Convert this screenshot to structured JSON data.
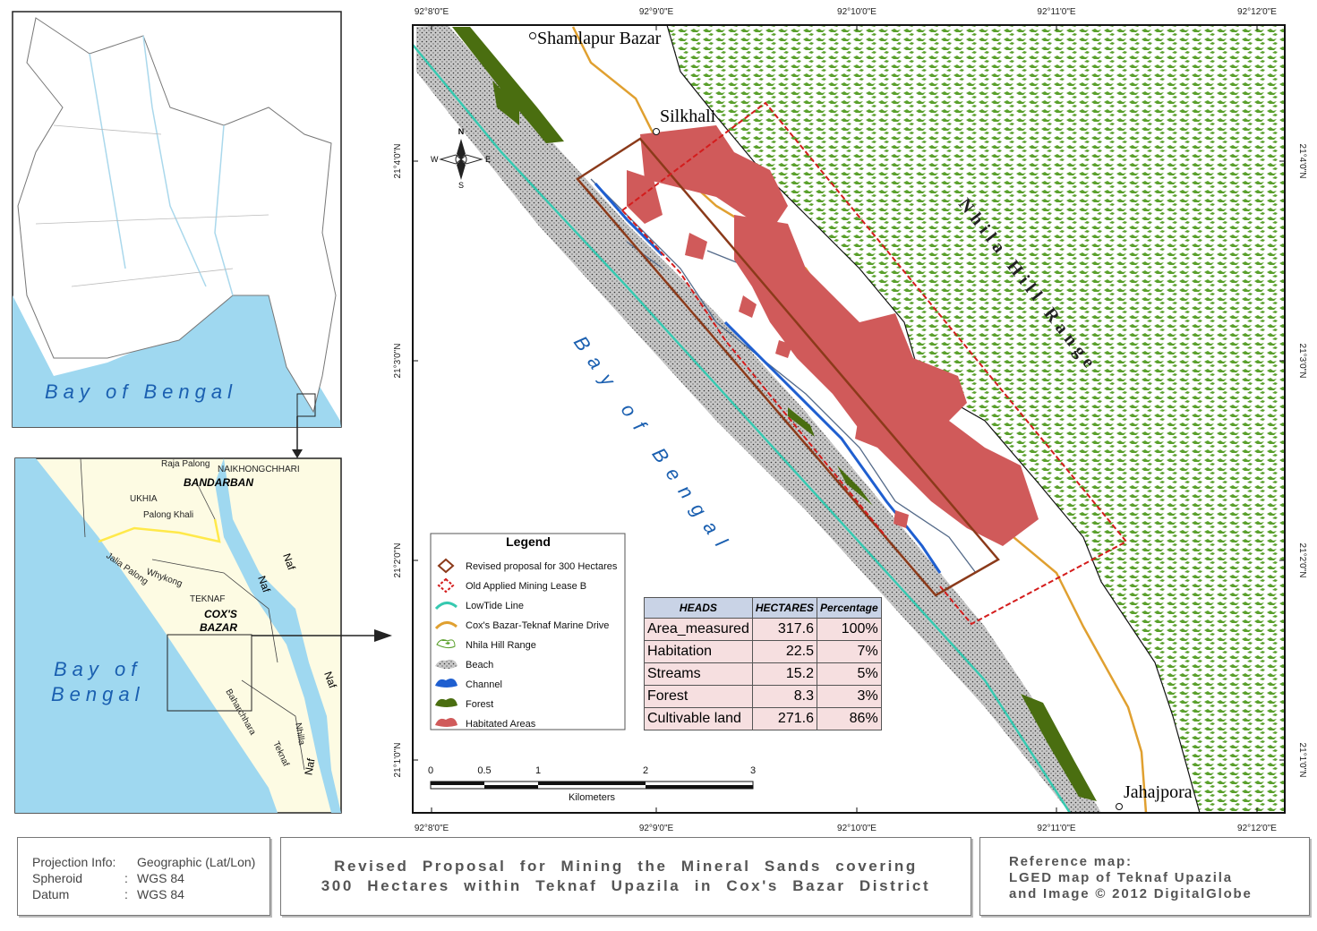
{
  "locator_map": {
    "sea_label": "Bay of Bengal"
  },
  "district_map": {
    "labels": [
      "Raja Palong",
      "NAIKHONGCHHARI",
      "BANDARBAN",
      "UKHIA",
      "Palong Khali",
      "Jalia Palong",
      "Whykong",
      "TEKNAF",
      "Baharchhara",
      "Nhilla",
      "Teknaf"
    ],
    "district_label": [
      "COX'S",
      "BAZAR"
    ],
    "sea_label": [
      "Bay of",
      "Bengal"
    ],
    "river_labels": [
      "Naf",
      "Naf",
      "Naf",
      "Naf"
    ]
  },
  "main_map": {
    "places": [
      "Shamlapur Bazar",
      "Silkhali",
      "Jahajpora"
    ],
    "hill_label": "Nhila Hill Range",
    "sea_label": "Bay of Bengal",
    "compass": {
      "n": "N",
      "s": "S",
      "e": "E",
      "w": "W"
    },
    "longitudes": [
      "92°8'0\"E",
      "92°9'0\"E",
      "92°10'0\"E",
      "92°11'0\"E",
      "92°12'0\"E"
    ],
    "latitudes": [
      "21°4'0\"N",
      "21°3'0\"N",
      "21°2'0\"N",
      "21°1'0\"N"
    ]
  },
  "legend": {
    "title": "Legend",
    "items": [
      "Revised proposal for 300 Hectares",
      "Old Applied Mining Lease B",
      "LowTide Line",
      "Cox's Bazar-Teknaf Marine Drive",
      "Nhila Hill Range",
      "Beach",
      "Channel",
      "Forest",
      "Habitated Areas"
    ]
  },
  "scale_bar": {
    "ticks": [
      0,
      0.5,
      1,
      2,
      3
    ],
    "unit": "Kilometers"
  },
  "table": {
    "header": [
      "HEADS",
      "HECTARES",
      "Percentage"
    ],
    "rows": [
      [
        "Area_measured",
        317.6,
        "100%"
      ],
      [
        "Habitation",
        22.5,
        "7%"
      ],
      [
        "Streams",
        15.2,
        "5%"
      ],
      [
        "Forest",
        8.3,
        "3%"
      ],
      [
        "Cultivable land",
        271.6,
        "86%"
      ]
    ]
  },
  "footer": {
    "projection": [
      [
        "Projection Info:",
        "Geographic (Lat/Lon)"
      ],
      [
        "Spheroid",
        ":",
        "WGS 84"
      ],
      [
        "Datum",
        ":",
        "WGS 84"
      ]
    ],
    "title": [
      "Revised Proposal for Mining the Mineral Sands covering",
      "300 Hectares within Teknaf Upazila in Cox's Bazar District"
    ],
    "reference": [
      "Reference map:",
      "LGED map of Teknaf Upazila",
      "and Image © 2012 DigitalGlobe"
    ]
  }
}
